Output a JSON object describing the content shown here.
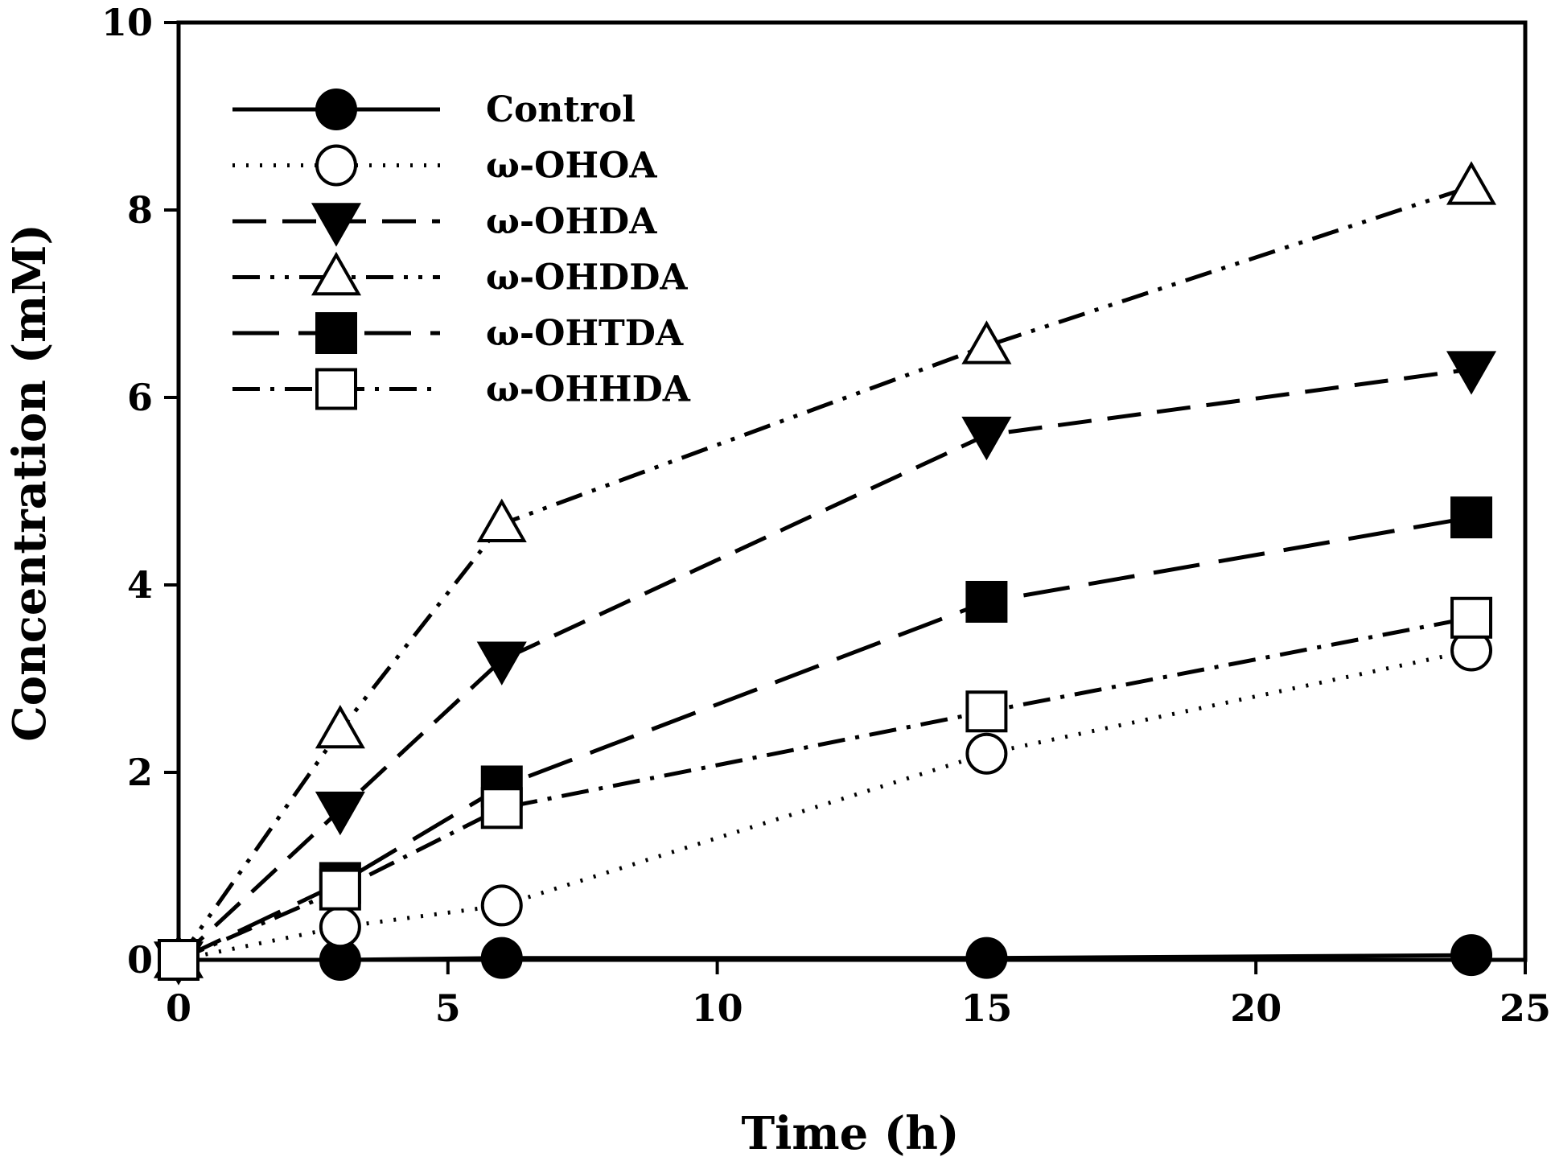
{
  "chart_data": {
    "type": "line",
    "title": "",
    "xlabel": "Time (h)",
    "ylabel": "Concentration (mM)",
    "xlim": [
      0,
      25
    ],
    "ylim": [
      0,
      10
    ],
    "xticks": [
      0,
      5,
      10,
      15,
      20,
      25
    ],
    "yticks": [
      0,
      2,
      4,
      6,
      8,
      10
    ],
    "grid": false,
    "legend_position": "top-left",
    "x": [
      0,
      3,
      6,
      15,
      24
    ],
    "series": [
      {
        "name": "Control",
        "marker": "circle",
        "filled": true,
        "dash": "solid",
        "values": [
          0,
          0,
          0.02,
          0.02,
          0.05
        ]
      },
      {
        "name": "ω-OHOA",
        "marker": "circle",
        "filled": false,
        "dash": "dotted",
        "values": [
          0,
          0.35,
          0.58,
          2.2,
          3.3
        ]
      },
      {
        "name": "ω-OHDA",
        "marker": "triangle-down",
        "filled": true,
        "dash": "dashed",
        "values": [
          0,
          1.6,
          3.2,
          5.6,
          6.3
        ]
      },
      {
        "name": "ω-OHDDA",
        "marker": "triangle-up",
        "filled": false,
        "dash": "dash-dot-dot",
        "values": [
          0,
          2.45,
          4.65,
          6.55,
          8.25
        ]
      },
      {
        "name": "ω-OHTDA",
        "marker": "square",
        "filled": true,
        "dash": "long-dash",
        "values": [
          0,
          0.82,
          1.85,
          3.82,
          4.72
        ]
      },
      {
        "name": "ω-OHHDA",
        "marker": "square",
        "filled": false,
        "dash": "dash-dot",
        "values": [
          0,
          0.75,
          1.62,
          2.65,
          3.65
        ]
      }
    ]
  }
}
